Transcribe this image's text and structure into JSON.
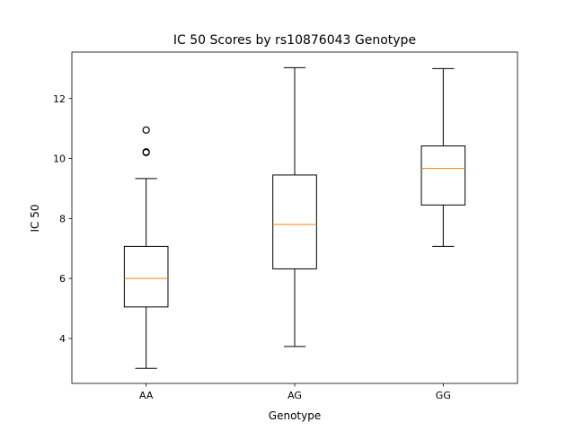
{
  "chart_data": {
    "type": "box",
    "title": "IC 50 Scores by rs10876043 Genotype",
    "xlabel": "Genotype",
    "ylabel": "IC 50",
    "ylim": [
      2.5,
      13.55
    ],
    "yticks": [
      4,
      6,
      8,
      10,
      12
    ],
    "grid": false,
    "colors": {
      "box": "#000000",
      "median": "#ff7f0e",
      "background": "#ffffff"
    },
    "categories": [
      "AA",
      "AG",
      "GG"
    ],
    "boxes": [
      {
        "name": "AA",
        "whisker_low": 3.0,
        "q1": 5.05,
        "median": 6.0,
        "q3": 7.07,
        "whisker_high": 9.33,
        "outliers": [
          10.2,
          10.22,
          10.95
        ]
      },
      {
        "name": "AG",
        "whisker_low": 3.73,
        "q1": 6.32,
        "median": 7.8,
        "q3": 9.45,
        "whisker_high": 13.03,
        "outliers": []
      },
      {
        "name": "GG",
        "whisker_low": 7.07,
        "q1": 8.45,
        "median": 9.67,
        "q3": 10.42,
        "whisker_high": 13.0,
        "outliers": []
      }
    ]
  }
}
